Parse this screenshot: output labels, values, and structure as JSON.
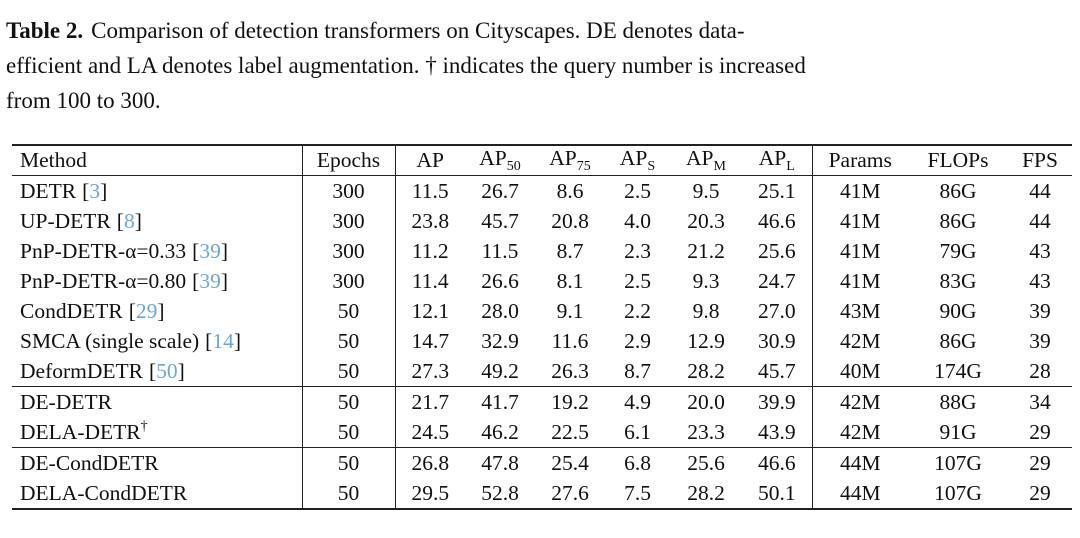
{
  "caption": {
    "label": "Table 2.",
    "lines": [
      "Comparison of detection transformers on Cityscapes. DE denotes data-",
      "efficient and LA denotes label augmentation. † indicates the query number is increased",
      "from 100 to 300."
    ]
  },
  "table": {
    "header": [
      "Method",
      "Epochs",
      "AP",
      {
        "text": "AP",
        "sub": "50"
      },
      {
        "text": "AP",
        "sub": "75"
      },
      {
        "text": "AP",
        "sub": "S"
      },
      {
        "text": "AP",
        "sub": "M"
      },
      {
        "text": "AP",
        "sub": "L"
      },
      "Params",
      "FLOPs",
      "FPS"
    ],
    "groups": [
      {
        "rows": [
          {
            "method": "DETR",
            "ref": [
              "[",
              "3",
              "]"
            ],
            "cells": [
              "300",
              "11.5",
              "26.7",
              "8.6",
              "2.5",
              "9.5",
              "25.1",
              "41M",
              "86G",
              "44"
            ]
          },
          {
            "method": "UP-DETR",
            "ref": [
              "[",
              "8",
              "]"
            ],
            "cells": [
              "300",
              "23.8",
              "45.7",
              "20.8",
              "4.0",
              "20.3",
              "46.6",
              "41M",
              "86G",
              "44"
            ]
          },
          {
            "method": "PnP-DETR-α=0.33",
            "ref": [
              "[",
              "39",
              "]"
            ],
            "cells": [
              "300",
              "11.2",
              "11.5",
              "8.7",
              "2.3",
              "21.2",
              "25.6",
              "41M",
              "79G",
              "43"
            ]
          },
          {
            "method": "PnP-DETR-α=0.80",
            "ref": [
              "[",
              "39",
              "]"
            ],
            "cells": [
              "300",
              "11.4",
              "26.6",
              "8.1",
              "2.5",
              "9.3",
              "24.7",
              "41M",
              "83G",
              "43"
            ]
          },
          {
            "method": "CondDETR",
            "ref": [
              "[",
              "29",
              "]"
            ],
            "cells": [
              "50",
              "12.1",
              "28.0",
              "9.1",
              "2.2",
              "9.8",
              "27.0",
              "43M",
              "90G",
              "39"
            ]
          },
          {
            "method": "SMCA (single scale)",
            "ref": [
              "[",
              "14",
              "]"
            ],
            "cells": [
              "50",
              "14.7",
              "32.9",
              "11.6",
              "2.9",
              "12.9",
              "30.9",
              "42M",
              "86G",
              "39"
            ]
          },
          {
            "method": "DeformDETR",
            "ref": [
              "[",
              "50",
              "]"
            ],
            "cells": [
              "50",
              "27.3",
              "49.2",
              "26.3",
              "8.7",
              "28.2",
              "45.7",
              "40M",
              "174G",
              "28"
            ]
          }
        ]
      },
      {
        "rows": [
          {
            "method": "DE-DETR",
            "cells": [
              "50",
              "21.7",
              "41.7",
              "19.2",
              "4.9",
              "20.0",
              "39.9",
              "42M",
              "88G",
              "34"
            ]
          },
          {
            "method": "DELA-DETR",
            "sup": "†",
            "cells": [
              "50",
              "24.5",
              "46.2",
              "22.5",
              "6.1",
              "23.3",
              "43.9",
              "42M",
              "91G",
              "29"
            ]
          }
        ]
      },
      {
        "rows": [
          {
            "method": "DE-CondDETR",
            "cells": [
              "50",
              "26.8",
              "47.8",
              "25.4",
              "6.8",
              "25.6",
              "46.6",
              "44M",
              "107G",
              "29"
            ]
          },
          {
            "method": "DELA-CondDETR",
            "cells": [
              "50",
              "29.5",
              "52.8",
              "27.6",
              "7.5",
              "28.2",
              "50.1",
              "44M",
              "107G",
              "29"
            ]
          }
        ]
      }
    ]
  }
}
